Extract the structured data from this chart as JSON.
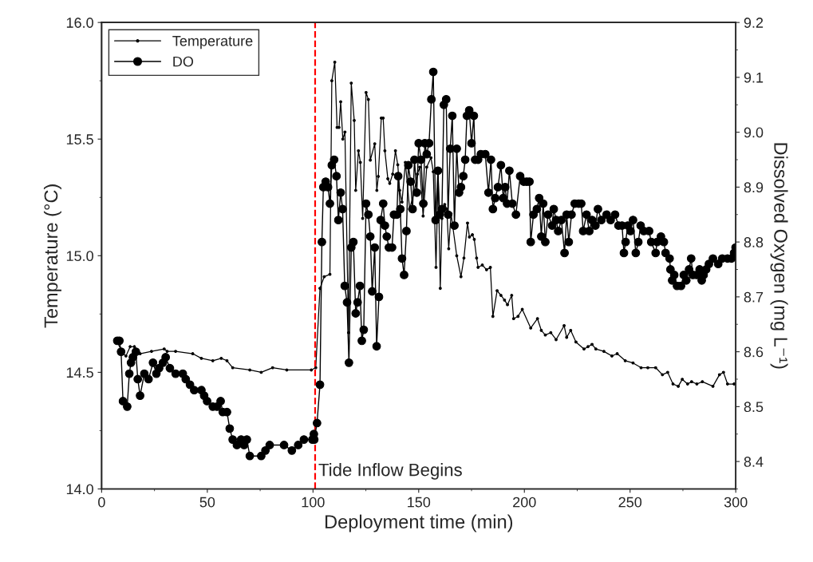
{
  "chart_data": {
    "type": "line",
    "xlabel": "Deployment time (min)",
    "ylabel": "Temperature (°C)",
    "y2label": "Dissolved Oxygen (mg L⁻¹)",
    "xlim": [
      0,
      300
    ],
    "xticks": [
      0,
      50,
      100,
      150,
      200,
      250,
      300
    ],
    "ylim": [
      14.0,
      16.0
    ],
    "yticks": [
      {
        "value": 14.0,
        "label": "14.0"
      },
      {
        "value": 14.5,
        "label": "14.5"
      },
      {
        "value": 15.0,
        "label": "15.0"
      },
      {
        "value": 15.5,
        "label": "15.5"
      },
      {
        "value": 16.0,
        "label": "16.0"
      }
    ],
    "y2lim": [
      8.35,
      9.2
    ],
    "y2ticks": [
      8.4,
      8.5,
      8.6,
      8.7,
      8.8,
      8.9,
      {
        "value": 9.0,
        "label": "9.0"
      },
      9.1,
      9.2
    ],
    "legend": "top left",
    "grid": false,
    "ref_lines": [
      {
        "axis": "x",
        "value": 101,
        "label": "Tide Inflow Begins",
        "color": "#ff0000",
        "line_style": "dashed"
      }
    ],
    "series": [
      {
        "name": "Temperature",
        "color": "#000000",
        "marker": "circle",
        "x": [
          7.4,
          10.1,
          11.5,
          13.5,
          15.5,
          18.2,
          23.6,
          29.6,
          31.0,
          35.0,
          43.1,
          47.2,
          52.6,
          56.6,
          59.3,
          62.0,
          70.1,
          75.5,
          80.9,
          87.6,
          99.2,
          101.3,
          103.3,
          105.3,
          108.0,
          108.9,
          110.3,
          111.4,
          112.3,
          113.1,
          114.1,
          115.1,
          116.8,
          118.1,
          119.5,
          120.2,
          121.5,
          122.4,
          123.5,
          125.1,
          126.2,
          127.1,
          129.2,
          130.2,
          130.9,
          132.3,
          133.2,
          134.0,
          135.4,
          136.3,
          137.7,
          139.0,
          140.1,
          141.0,
          142.1,
          143.7,
          145.7,
          147.8,
          149.4,
          150.5,
          152.1,
          153.8,
          155.8,
          156.9,
          158.2,
          159.2,
          160.2,
          161.0,
          162.3,
          163.3,
          164.2,
          165.3,
          166.2,
          168.0,
          170.0,
          171.4,
          173.1,
          174.0,
          175.4,
          176.3,
          177.4,
          178.1,
          180.1,
          182.1,
          183.9,
          185.1,
          187.1,
          188.9,
          190.6,
          192.0,
          194.0,
          194.9,
          197.0,
          199.0,
          203.0,
          206.2,
          208.0,
          209.9,
          212.5,
          215.0,
          218.8,
          220.0,
          221.9,
          224.4,
          228.2,
          230.1,
          232.0,
          233.8,
          237.6,
          241.4,
          243.9,
          247.7,
          251.4,
          255.2,
          258.4,
          262.1,
          265.3,
          267.8,
          270.3,
          272.8,
          274.7,
          277.2,
          279.1,
          281.6,
          284.2,
          289.2,
          292.3,
          294.2,
          296.1,
          299.2
        ],
        "values": [
          14.63,
          14.58,
          14.57,
          14.61,
          14.61,
          14.58,
          14.59,
          14.6,
          14.59,
          14.59,
          14.58,
          14.56,
          14.55,
          14.56,
          14.55,
          14.52,
          14.51,
          14.5,
          14.52,
          14.51,
          14.51,
          14.52,
          14.86,
          14.91,
          14.92,
          15.75,
          15.83,
          15.55,
          15.55,
          15.66,
          15.5,
          15.53,
          14.67,
          15.74,
          15.58,
          15.28,
          15.45,
          15.4,
          15.16,
          15.7,
          15.67,
          15.41,
          15.48,
          15.28,
          15.34,
          15.59,
          15.59,
          15.45,
          15.33,
          15.31,
          15.35,
          15.45,
          15.39,
          15.28,
          15.23,
          15.4,
          15.2,
          15.27,
          15.35,
          15.38,
          15.17,
          15.38,
          15.42,
          15.36,
          14.95,
          15.36,
          14.86,
          15.16,
          15.22,
          15.2,
          15.03,
          15.18,
          15.12,
          15.0,
          14.91,
          14.99,
          15.14,
          15.08,
          15.09,
          15.07,
          14.99,
          14.95,
          14.96,
          14.94,
          14.95,
          14.74,
          14.85,
          14.83,
          14.81,
          14.79,
          14.83,
          14.73,
          14.74,
          14.77,
          14.69,
          14.73,
          14.68,
          14.66,
          14.67,
          14.64,
          14.7,
          14.65,
          14.68,
          14.63,
          14.6,
          14.61,
          14.62,
          14.6,
          14.59,
          14.57,
          14.58,
          14.55,
          14.54,
          14.52,
          14.52,
          14.52,
          14.49,
          14.5,
          14.45,
          14.44,
          14.47,
          14.45,
          14.46,
          14.45,
          14.46,
          14.44,
          14.49,
          14.5,
          14.45,
          14.45
        ]
      },
      {
        "name": "DO",
        "color": "#000000",
        "marker": "circle",
        "axis": "y2",
        "x": [
          7.4,
          8.4,
          9.2,
          10.1,
          12.1,
          13.1,
          13.9,
          14.8,
          16.2,
          17.1,
          18.2,
          20.2,
          22.2,
          24.3,
          25.9,
          27.2,
          29.0,
          30.3,
          32.3,
          35.0,
          38.4,
          39.8,
          41.8,
          43.8,
          47.2,
          48.5,
          49.9,
          52.6,
          54.6,
          56.3,
          57.3,
          59.3,
          60.6,
          62.0,
          64.0,
          66.0,
          67.4,
          68.7,
          70.1,
          75.5,
          77.5,
          79.5,
          86.3,
          90.0,
          93.0,
          95.7,
          99.7,
          100.4,
          100.6,
          101.9,
          103.3,
          104.2,
          104.9,
          106.0,
          107.1,
          108.0,
          108.9,
          110.0,
          111.1,
          112.0,
          113.1,
          114.0,
          115.0,
          116.1,
          117.0,
          118.1,
          119.1,
          120.2,
          121.1,
          122.2,
          123.1,
          124.0,
          125.1,
          126.2,
          127.1,
          128.0,
          129.2,
          130.1,
          131.2,
          132.0,
          133.2,
          134.0,
          134.9,
          135.9,
          137.4,
          138.3,
          139.7,
          140.3,
          141.3,
          142.1,
          143.1,
          144.2,
          145.1,
          146.2,
          147.1,
          148.0,
          149.1,
          150.0,
          151.1,
          152.2,
          152.9,
          153.8,
          154.9,
          156.0,
          156.9,
          158.0,
          159.1,
          159.9,
          161.0,
          161.9,
          163.0,
          163.9,
          164.9,
          165.9,
          166.9,
          168.0,
          169.1,
          170.0,
          171.1,
          172.0,
          172.8,
          173.9,
          175.0,
          176.1,
          176.7,
          178.1,
          179.4,
          181.5,
          183.0,
          184.2,
          185.1,
          186.2,
          187.5,
          188.9,
          190.0,
          190.9,
          191.8,
          192.9,
          194.3,
          196.0,
          198.0,
          199.7,
          201.1,
          202.4,
          203.0,
          204.3,
          205.9,
          207.0,
          208.0,
          208.9,
          209.9,
          211.2,
          213.1,
          213.9,
          215.0,
          216.0,
          217.5,
          219.0,
          220.0,
          221.0,
          222.3,
          223.8,
          225.7,
          226.9,
          227.8,
          229.4,
          230.7,
          232.0,
          233.6,
          234.8,
          236.4,
          238.9,
          240.8,
          242.9,
          244.5,
          246.2,
          247.1,
          247.9,
          248.9,
          250.2,
          251.4,
          252.7,
          253.9,
          255.0,
          256.5,
          259.0,
          260.0,
          262.1,
          262.8,
          264.6,
          266.0,
          266.8,
          268.7,
          269.1,
          269.9,
          270.9,
          272.2,
          274.1,
          275.4,
          276.6,
          277.9,
          278.9,
          279.7,
          281.6,
          282.9,
          283.9,
          284.8,
          286.0,
          287.3,
          289.2,
          291.7,
          293.6,
          296.1,
          298.0,
          299.2,
          299.9
        ],
        "values": [
          8.62,
          8.62,
          8.6,
          8.51,
          8.5,
          8.56,
          8.58,
          8.59,
          8.6,
          8.55,
          8.52,
          8.56,
          8.55,
          8.58,
          8.56,
          8.57,
          8.58,
          8.59,
          8.57,
          8.56,
          8.56,
          8.55,
          8.54,
          8.53,
          8.53,
          8.52,
          8.51,
          8.5,
          8.5,
          8.51,
          8.49,
          8.49,
          8.46,
          8.44,
          8.43,
          8.44,
          8.43,
          8.44,
          8.41,
          8.41,
          8.42,
          8.43,
          8.43,
          8.42,
          8.43,
          8.44,
          8.44,
          8.45,
          8.44,
          8.47,
          8.54,
          8.8,
          8.9,
          8.91,
          8.9,
          8.87,
          8.94,
          8.95,
          8.92,
          8.84,
          8.89,
          8.86,
          8.72,
          8.69,
          8.58,
          8.79,
          8.8,
          8.67,
          8.69,
          8.72,
          8.62,
          8.64,
          8.87,
          8.85,
          8.81,
          8.71,
          8.79,
          8.61,
          8.7,
          8.84,
          8.87,
          8.83,
          8.81,
          8.79,
          8.79,
          8.85,
          8.85,
          8.92,
          8.86,
          8.77,
          8.74,
          8.82,
          8.94,
          8.91,
          8.86,
          8.95,
          8.89,
          8.98,
          8.95,
          8.87,
          8.98,
          8.96,
          8.98,
          9.06,
          9.11,
          8.84,
          8.93,
          8.85,
          8.86,
          9.05,
          9.06,
          8.85,
          8.97,
          9.03,
          8.83,
          8.97,
          8.89,
          8.9,
          8.92,
          8.95,
          9.03,
          9.04,
          8.98,
          9.03,
          8.95,
          8.95,
          8.96,
          8.96,
          8.89,
          8.95,
          8.86,
          8.88,
          8.9,
          8.94,
          8.88,
          8.9,
          8.87,
          8.93,
          8.87,
          8.85,
          8.92,
          8.91,
          8.91,
          8.91,
          8.8,
          8.85,
          8.86,
          8.88,
          8.81,
          8.87,
          8.8,
          8.85,
          8.83,
          8.86,
          8.84,
          8.82,
          8.84,
          8.78,
          8.85,
          8.8,
          8.85,
          8.87,
          8.87,
          8.87,
          8.82,
          8.85,
          8.82,
          8.84,
          8.83,
          8.86,
          8.84,
          8.85,
          8.84,
          8.85,
          8.83,
          8.83,
          8.78,
          8.8,
          8.83,
          8.82,
          8.84,
          8.78,
          8.8,
          8.83,
          8.82,
          8.82,
          8.8,
          8.78,
          8.8,
          8.81,
          8.8,
          8.78,
          8.77,
          8.75,
          8.73,
          8.74,
          8.72,
          8.72,
          8.74,
          8.73,
          8.75,
          8.77,
          8.74,
          8.74,
          8.75,
          8.73,
          8.74,
          8.75,
          8.76,
          8.77,
          8.76,
          8.77,
          8.77,
          8.77,
          8.78,
          8.79
        ]
      }
    ]
  }
}
